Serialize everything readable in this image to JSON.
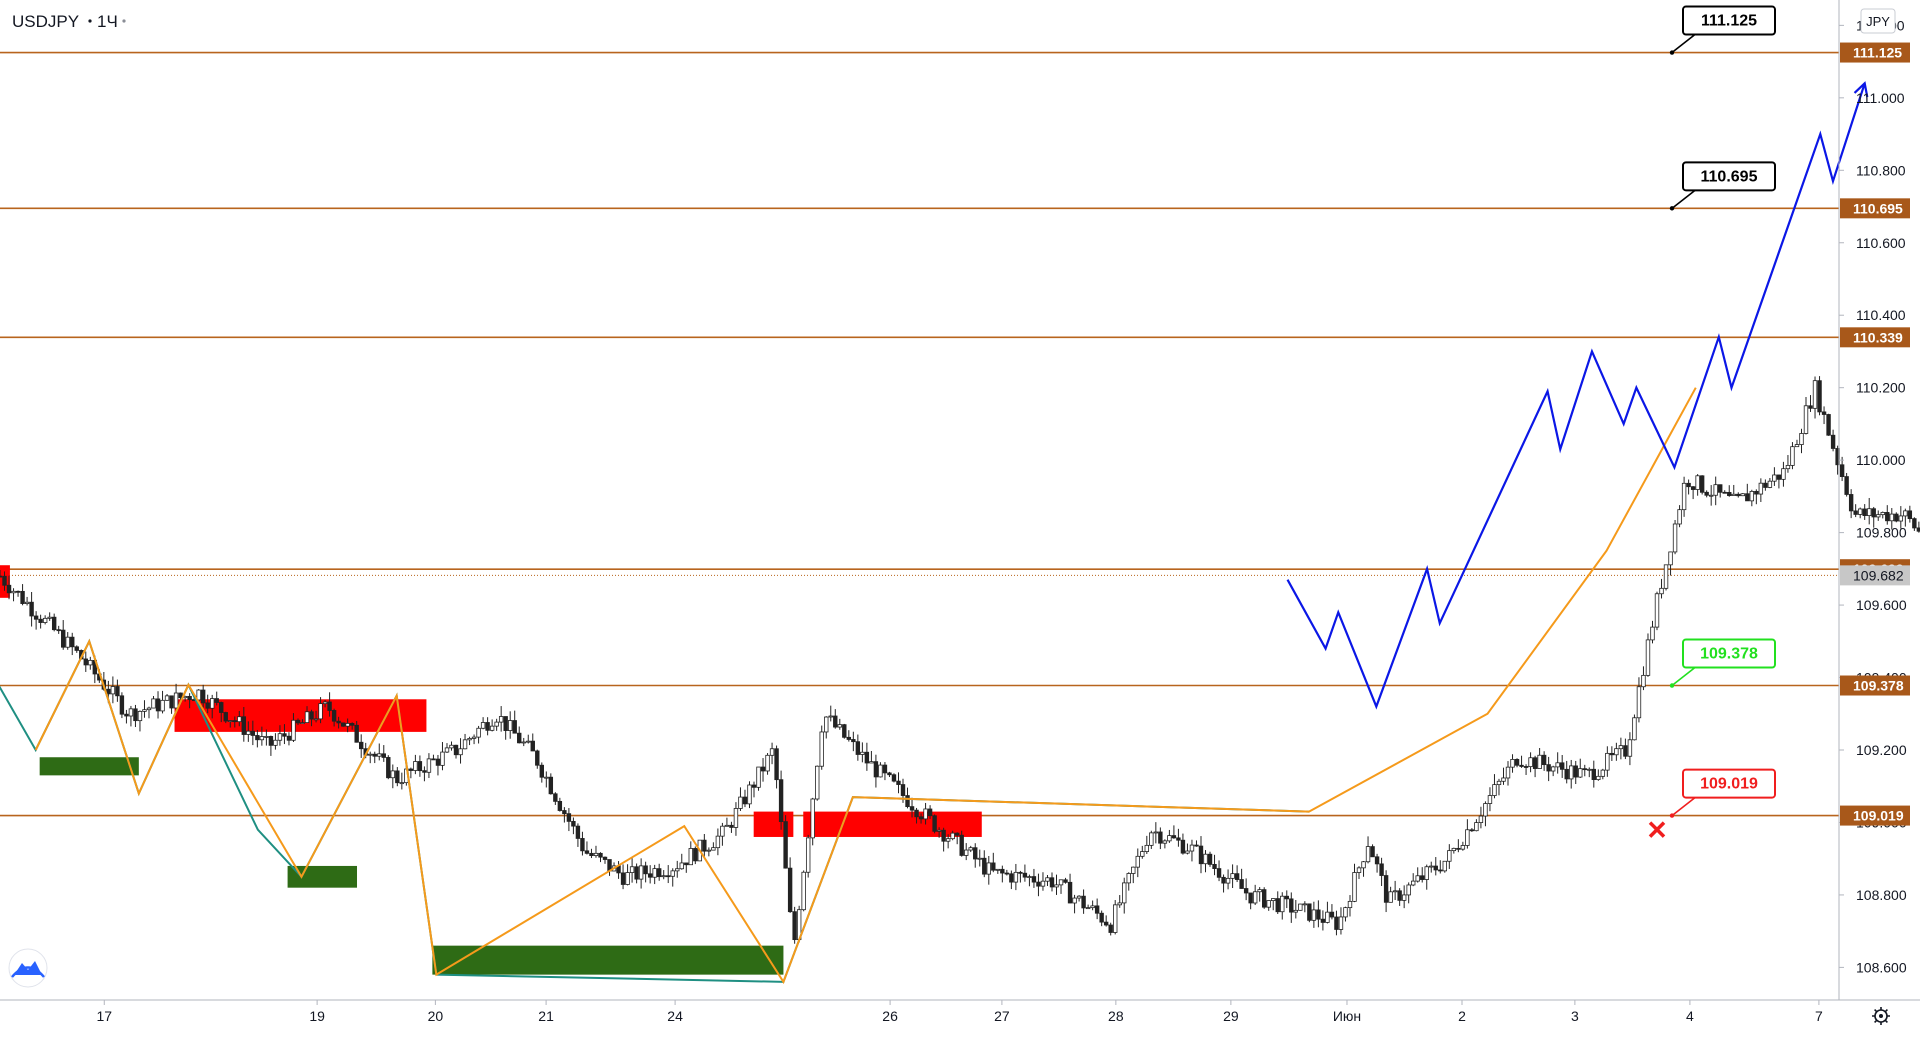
{
  "symbol": "USDJPY",
  "interval": "1Ч",
  "currency_badge": "JPY",
  "colors": {
    "level_line": "#b8641d",
    "level_badge": "#a8581a",
    "current_badge": "#c7c7c7",
    "forecast": "#0b17e6",
    "zig_up": "#f59a1b",
    "zig_down": "#1f8f82",
    "supply_zone": "#ff0000",
    "demand_zone": "#2e6b15",
    "candle_up": "#ffffff",
    "candle_down": "#222222",
    "callout_green": "#22e01f",
    "callout_red": "#f01e1e"
  },
  "chart_data": {
    "type": "candlestick",
    "x_ticks": [
      "17",
      "19",
      "20",
      "21",
      "24",
      "26",
      "27",
      "28",
      "29",
      "Июн",
      "2",
      "3",
      "4",
      "7"
    ],
    "y_ticks": [
      "111.200",
      "111.000",
      "110.800",
      "110.600",
      "110.400",
      "110.200",
      "110.000",
      "109.800",
      "109.600",
      "109.400",
      "109.200",
      "109.000",
      "108.800",
      "108.600"
    ],
    "ylim": [
      108.51,
      111.27
    ],
    "current_price": "109.682",
    "levels": [
      "111.125",
      "110.695",
      "110.339",
      "109.699",
      "109.378",
      "109.019"
    ],
    "callouts": [
      {
        "label": "111.125",
        "style": "black",
        "target": 111.125
      },
      {
        "label": "110.695",
        "style": "black",
        "target": 110.695
      },
      {
        "label": "109.378",
        "style": "green",
        "target": 109.378
      },
      {
        "label": "109.019",
        "style": "red",
        "target": 109.019
      }
    ],
    "candle_keypoints": [
      [
        0,
        109.68
      ],
      [
        0.4,
        109.46
      ],
      [
        0.65,
        109.3
      ],
      [
        1,
        109.36
      ],
      [
        1.35,
        109.21
      ],
      [
        1.65,
        109.32
      ],
      [
        2,
        109.12
      ],
      [
        2.3,
        109.2
      ],
      [
        2.5,
        109.3
      ],
      [
        2.7,
        109.18
      ],
      [
        2.95,
        108.92
      ],
      [
        3.15,
        108.85
      ],
      [
        3.4,
        108.88
      ],
      [
        3.65,
        108.97
      ],
      [
        3.9,
        109.2
      ],
      [
        4,
        108.65
      ],
      [
        4.15,
        109.3
      ],
      [
        4.35,
        109.18
      ],
      [
        4.7,
        109.0
      ],
      [
        5,
        108.86
      ],
      [
        5.3,
        108.84
      ],
      [
        5.6,
        108.72
      ],
      [
        5.8,
        108.98
      ],
      [
        6,
        108.93
      ],
      [
        6.3,
        108.8
      ],
      [
        6.6,
        108.75
      ],
      [
        6.75,
        108.72
      ],
      [
        6.9,
        108.95
      ],
      [
        7.0,
        108.78
      ],
      [
        7.3,
        108.9
      ],
      [
        7.65,
        109.18
      ],
      [
        8,
        109.13
      ],
      [
        8.2,
        109.2
      ],
      [
        8.35,
        109.6
      ],
      [
        8.5,
        109.95
      ],
      [
        8.75,
        109.88
      ],
      [
        9.0,
        109.97
      ],
      [
        9.15,
        110.2
      ],
      [
        9.35,
        109.85
      ],
      [
        9.6,
        109.85
      ],
      [
        9.9,
        109.66
      ],
      [
        10.1,
        109.65
      ]
    ],
    "zigzag": [
      {
        "color": "down",
        "points": [
          [
            -0.05,
            109.42
          ],
          [
            0.18,
            109.2
          ],
          [
            0.45,
            109.5
          ],
          [
            0.7,
            109.08
          ],
          [
            0.95,
            109.38
          ],
          [
            1.3,
            108.98
          ],
          [
            1.52,
            108.85
          ],
          [
            2.0,
            109.35
          ],
          [
            2.2,
            108.58
          ],
          [
            3.95,
            108.56
          ],
          [
            4.3,
            109.07
          ],
          [
            6.6,
            109.03
          ]
        ]
      },
      {
        "color": "up",
        "points": [
          [
            0.18,
            109.2
          ],
          [
            0.45,
            109.5
          ],
          [
            0.7,
            109.08
          ],
          [
            0.95,
            109.38
          ],
          [
            1.52,
            108.85
          ],
          [
            2.0,
            109.35
          ],
          [
            2.2,
            108.58
          ],
          [
            3.45,
            108.99
          ],
          [
            3.95,
            108.56
          ],
          [
            4.3,
            109.07
          ],
          [
            6.6,
            109.03
          ],
          [
            7.5,
            109.3
          ],
          [
            8.1,
            109.75
          ],
          [
            8.55,
            110.2
          ]
        ]
      }
    ],
    "forecast": [
      [
        10.15,
        109.67
      ],
      [
        10.45,
        109.48
      ],
      [
        10.55,
        109.58
      ],
      [
        10.85,
        109.32
      ],
      [
        11.25,
        109.7
      ],
      [
        11.35,
        109.55
      ],
      [
        12.2,
        110.19
      ],
      [
        12.3,
        110.03
      ],
      [
        12.55,
        110.3
      ],
      [
        12.8,
        110.1
      ],
      [
        12.9,
        110.2
      ],
      [
        13.2,
        109.98
      ],
      [
        13.55,
        110.34
      ],
      [
        13.65,
        110.2
      ],
      [
        14.35,
        110.9
      ],
      [
        14.45,
        110.77
      ],
      [
        14.7,
        111.04
      ]
    ],
    "zones": [
      {
        "type": "supply",
        "x0": -0.05,
        "x1": 0.05,
        "y0": 109.71,
        "y1": 109.62
      },
      {
        "type": "supply",
        "x0": 0.88,
        "x1": 2.15,
        "y0": 109.34,
        "y1": 109.25
      },
      {
        "type": "supply",
        "x0": 3.8,
        "x1": 4.0,
        "y0": 109.03,
        "y1": 108.96
      },
      {
        "type": "supply",
        "x0": 4.05,
        "x1": 4.95,
        "y0": 109.03,
        "y1": 108.96
      },
      {
        "type": "demand",
        "x0": 0.2,
        "x1": 0.7,
        "y0": 109.18,
        "y1": 109.13
      },
      {
        "type": "demand",
        "x0": 1.45,
        "x1": 1.8,
        "y0": 108.88,
        "y1": 108.82
      },
      {
        "type": "demand",
        "x0": 2.18,
        "x1": 3.95,
        "y0": 108.66,
        "y1": 108.58
      }
    ]
  }
}
